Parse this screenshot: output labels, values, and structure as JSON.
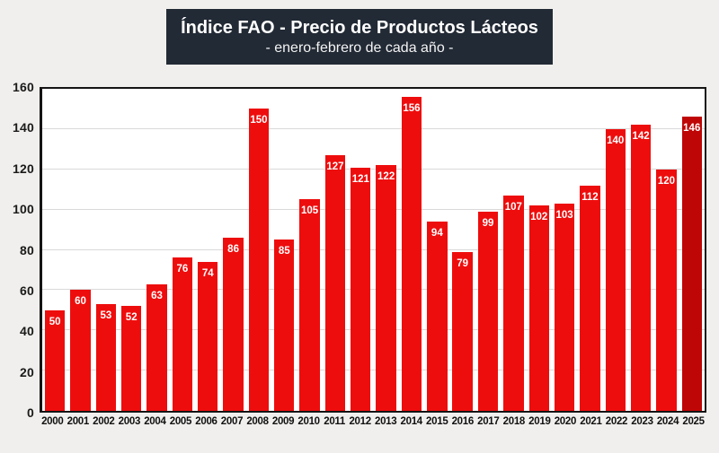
{
  "header": {
    "title": "Índice FAO - Precio de Productos Lácteos",
    "subtitle": "- enero-febrero de cada año -",
    "background": "#222a35",
    "text_color": "#ffffff"
  },
  "chart_data": {
    "type": "bar",
    "title": "Índice FAO - Precio de Productos Lácteos",
    "subtitle": "- enero-febrero de cada año -",
    "categories": [
      "2000",
      "2001",
      "2002",
      "2003",
      "2004",
      "2005",
      "2006",
      "2007",
      "2008",
      "2009",
      "2010",
      "2011",
      "2012",
      "2013",
      "2014",
      "2015",
      "2016",
      "2017",
      "2018",
      "2019",
      "2020",
      "2021",
      "2022",
      "2023",
      "2024",
      "2025"
    ],
    "values": [
      50,
      60,
      53,
      52,
      63,
      76,
      74,
      86,
      150,
      85,
      105,
      127,
      121,
      122,
      156,
      94,
      79,
      99,
      107,
      102,
      103,
      112,
      140,
      142,
      120,
      146
    ],
    "xlabel": "",
    "ylabel": "",
    "ylim": [
      0,
      160
    ],
    "yticks": [
      0,
      20,
      40,
      60,
      80,
      100,
      120,
      140,
      160
    ],
    "grid": true,
    "legend": "none",
    "bar_color": "#ee0d0d",
    "last_bar_color": "#bf0606",
    "value_label_color": "#ffffff",
    "gridline_color": "#d9d9d9",
    "plot_background": "#ffffff",
    "page_background": "#f0efed"
  }
}
